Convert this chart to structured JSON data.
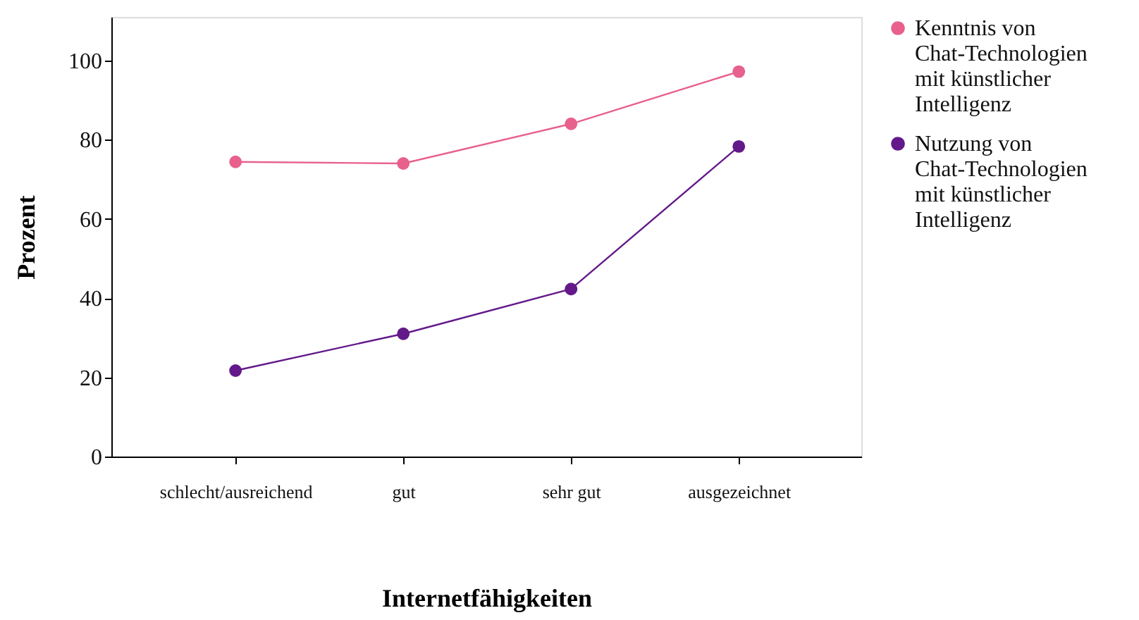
{
  "chart_data": {
    "type": "line",
    "xlabel": "Internetfähigkeiten",
    "ylabel": "Prozent",
    "categories": [
      "schlecht/ausreichend",
      "gut",
      "sehr gut",
      "ausgezeichnet"
    ],
    "series": [
      {
        "name": "Kenntnis von Chat-Technologien mit künstlicher Intelligenz",
        "color": "#e8608c",
        "values": [
          74.4,
          74.0,
          84.0,
          97.2
        ]
      },
      {
        "name": "Nutzung von Chat-Technologien mit künstlicher Intelligenz",
        "color": "#63198a",
        "values": [
          21.7,
          31.0,
          42.3,
          78.3
        ]
      }
    ],
    "ylim": [
      0,
      111
    ],
    "yticks": [
      0,
      20,
      40,
      60,
      80,
      100
    ],
    "grid": false,
    "legend": "right",
    "marker": "circle",
    "line_style": "solid"
  }
}
